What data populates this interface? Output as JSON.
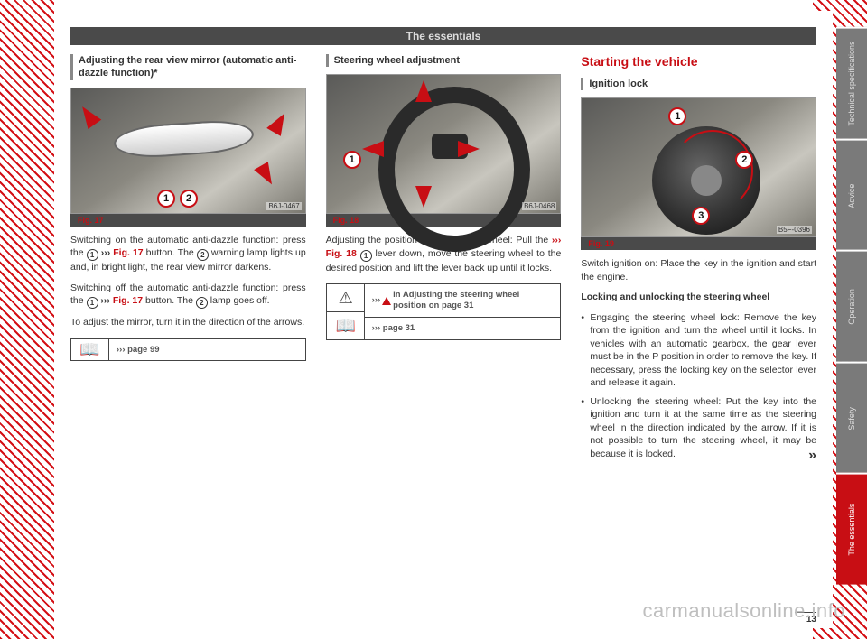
{
  "header": "The essentials",
  "tabs": [
    "Technical specifications",
    "Advice",
    "Operation",
    "Safety",
    "The essentials"
  ],
  "active_tab": 4,
  "page_number": "13",
  "watermark": "carmanualsonline.info",
  "col1": {
    "title": "Adjusting the rear view mirror (automatic anti-dazzle function)*",
    "fig_label": "Fig. 17",
    "fig_ref": "B6J-0467",
    "callouts": [
      "1",
      "2"
    ],
    "p1_a": "Switching on the automatic anti-dazzle function: press the ",
    "p1_b": " ››› ",
    "p1_fig": "Fig. 17",
    "p1_c": " button. The ",
    "p1_d": " warning lamp lights up and, in bright light, the rear view mirror darkens.",
    "p2_a": "Switching off the automatic anti-dazzle function: press the ",
    "p2_fig": "Fig. 17",
    "p2_c": " button. The ",
    "p2_d": " lamp goes off.",
    "p3": "To adjust the mirror, turn it in the direction of the arrows.",
    "note": "››› page 99"
  },
  "col2": {
    "title": "Steering wheel adjustment",
    "fig_label": "Fig. 18",
    "fig_ref": "B6J-0468",
    "callouts": [
      "1"
    ],
    "p1_a": "Adjusting the position of the steering wheel: Pull the ",
    "p1_fig": "››› Fig. 18",
    "p1_b": " lever down, move the steering wheel to the desired position and lift the lever back up until it locks.",
    "note_warn": "›››  in Adjusting the steering wheel position on page 31",
    "note_page": "››› page 31"
  },
  "col3": {
    "main_title": "Starting the vehicle",
    "title": "Ignition lock",
    "fig_label": "Fig. 19",
    "fig_ref": "B5F-0396",
    "callouts": [
      "1",
      "2",
      "3"
    ],
    "p1": "Switch ignition on: Place the key in the ignition and start the engine.",
    "subtitle": "Locking and unlocking the steering wheel",
    "b1": "Engaging the steering wheel lock: Remove the key from the ignition and turn the wheel until it locks. In vehicles with an automatic gearbox, the gear lever must be in the P position in order to remove the key. If necessary, press the locking key on the selector lever and release it again.",
    "b2": "Unlocking the steering wheel: Put the key into the ignition and turn it at the same time as the steering wheel in the direction indicated by the arrow. If it is not possible to turn the steering wheel, it may be because it is locked.",
    "cont": "»"
  }
}
